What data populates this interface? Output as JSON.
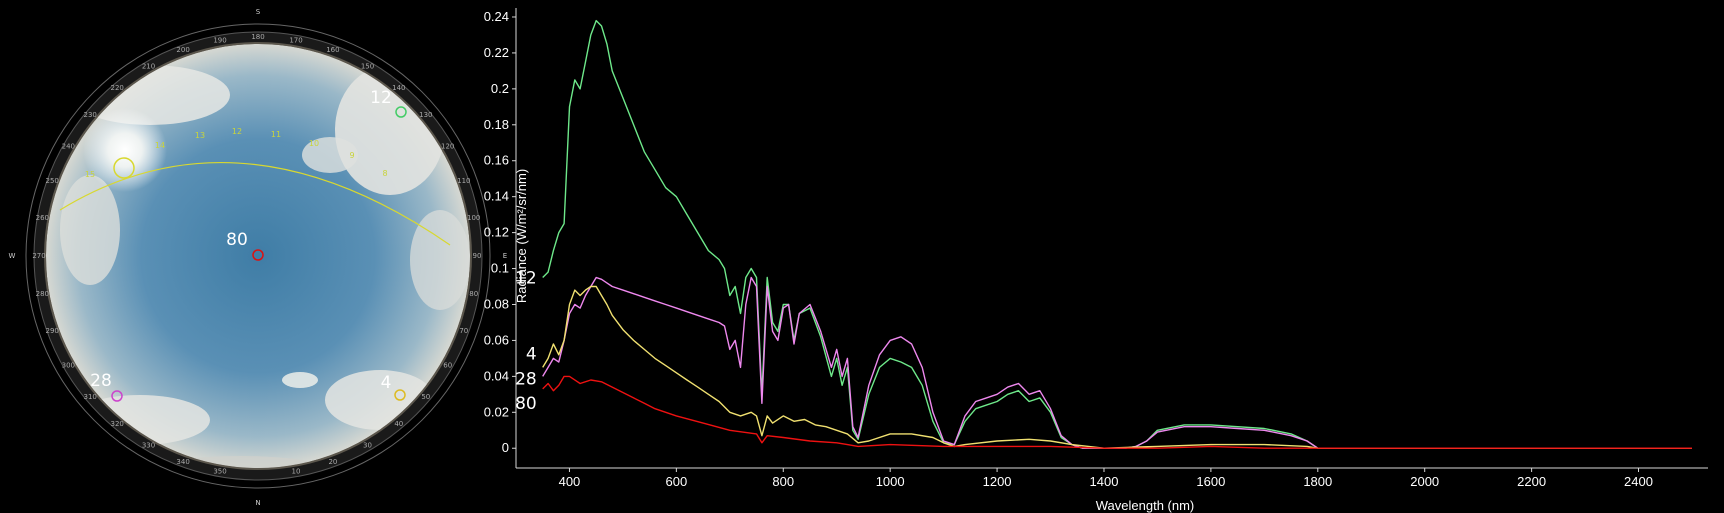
{
  "sky": {
    "compass": {
      "n": "N",
      "s": "S",
      "e": "E",
      "w": "W"
    },
    "azimuth_ticks": [
      "10",
      "20",
      "30",
      "40",
      "50",
      "60",
      "70",
      "80",
      "90",
      "100",
      "110",
      "120",
      "130",
      "140",
      "150",
      "160",
      "170",
      "180",
      "190",
      "200",
      "210",
      "220",
      "230",
      "240",
      "250",
      "260",
      "270",
      "280",
      "290",
      "300",
      "310",
      "320",
      "330",
      "340",
      "350"
    ],
    "sun_path_hours": [
      "15",
      "14",
      "13",
      "12",
      "11",
      "10",
      "9",
      "8"
    ],
    "markers": [
      {
        "label": "12",
        "color": "#44cc66"
      },
      {
        "label": "80",
        "color": "#dd1111"
      },
      {
        "label": "28",
        "color": "#cc44cc"
      },
      {
        "label": "4",
        "color": "#ddbb22"
      }
    ],
    "sun_path_color": "#d8d830"
  },
  "chart_data": {
    "type": "line",
    "xlabel": "Wavelength (nm)",
    "ylabel": "Radiance (W/m²/sr/nm)",
    "xlim": [
      300,
      2530
    ],
    "ylim": [
      -0.011,
      0.245
    ],
    "xticks": [
      400,
      600,
      800,
      1000,
      1200,
      1400,
      1600,
      1800,
      2000,
      2200,
      2400
    ],
    "yticks": [
      0,
      0.02,
      0.04,
      0.06,
      0.08,
      0.1,
      0.12,
      0.14,
      0.16,
      0.18,
      0.2,
      0.22,
      0.24
    ],
    "grid": false,
    "series": [
      {
        "name": "12",
        "color": "#6ee88a",
        "x": [
          350,
          360,
          370,
          380,
          390,
          400,
          410,
          420,
          430,
          440,
          450,
          460,
          470,
          480,
          500,
          520,
          540,
          560,
          580,
          600,
          620,
          640,
          660,
          680,
          690,
          700,
          710,
          720,
          730,
          740,
          750,
          760,
          770,
          780,
          790,
          800,
          810,
          820,
          830,
          850,
          870,
          890,
          900,
          910,
          920,
          930,
          940,
          960,
          980,
          1000,
          1020,
          1040,
          1060,
          1080,
          1100,
          1120,
          1140,
          1160,
          1180,
          1200,
          1220,
          1240,
          1260,
          1280,
          1300,
          1320,
          1340,
          1350,
          1360,
          1400,
          1440,
          1460,
          1480,
          1500,
          1550,
          1600,
          1650,
          1700,
          1750,
          1780,
          1800,
          1850,
          2000,
          2200,
          2400,
          2500
        ],
        "y": [
          0.095,
          0.098,
          0.11,
          0.12,
          0.125,
          0.19,
          0.205,
          0.2,
          0.215,
          0.23,
          0.238,
          0.235,
          0.225,
          0.21,
          0.195,
          0.18,
          0.165,
          0.155,
          0.145,
          0.14,
          0.13,
          0.12,
          0.11,
          0.105,
          0.1,
          0.085,
          0.09,
          0.075,
          0.095,
          0.1,
          0.095,
          0.03,
          0.095,
          0.07,
          0.065,
          0.08,
          0.08,
          0.06,
          0.075,
          0.078,
          0.062,
          0.04,
          0.05,
          0.035,
          0.045,
          0.01,
          0.005,
          0.03,
          0.045,
          0.05,
          0.048,
          0.045,
          0.035,
          0.015,
          0.003,
          0.002,
          0.015,
          0.022,
          0.024,
          0.026,
          0.03,
          0.032,
          0.026,
          0.028,
          0.02,
          0.006,
          0.002,
          0.001,
          0.0,
          0.0,
          0.0,
          0.001,
          0.004,
          0.01,
          0.013,
          0.013,
          0.012,
          0.011,
          0.008,
          0.004,
          0.0,
          0.0,
          0.0,
          0.0,
          0.0,
          0.0
        ]
      },
      {
        "name": "28",
        "color": "#ee88ee",
        "x": [
          350,
          360,
          370,
          380,
          390,
          400,
          410,
          420,
          430,
          440,
          450,
          460,
          470,
          480,
          500,
          520,
          540,
          560,
          580,
          600,
          620,
          640,
          660,
          680,
          690,
          700,
          710,
          720,
          730,
          740,
          750,
          760,
          770,
          780,
          790,
          800,
          810,
          820,
          830,
          850,
          870,
          890,
          900,
          910,
          920,
          930,
          940,
          960,
          980,
          1000,
          1020,
          1040,
          1060,
          1080,
          1100,
          1120,
          1140,
          1160,
          1180,
          1200,
          1220,
          1240,
          1260,
          1280,
          1300,
          1320,
          1340,
          1350,
          1360,
          1400,
          1440,
          1460,
          1480,
          1500,
          1550,
          1600,
          1650,
          1700,
          1750,
          1780,
          1800,
          1850,
          2000,
          2200,
          2400,
          2500
        ],
        "y": [
          0.04,
          0.045,
          0.05,
          0.048,
          0.06,
          0.075,
          0.08,
          0.078,
          0.085,
          0.09,
          0.095,
          0.094,
          0.092,
          0.09,
          0.088,
          0.086,
          0.084,
          0.082,
          0.08,
          0.078,
          0.076,
          0.074,
          0.072,
          0.07,
          0.068,
          0.055,
          0.06,
          0.045,
          0.08,
          0.095,
          0.09,
          0.025,
          0.09,
          0.065,
          0.06,
          0.078,
          0.08,
          0.058,
          0.075,
          0.08,
          0.065,
          0.045,
          0.055,
          0.04,
          0.05,
          0.012,
          0.006,
          0.035,
          0.052,
          0.06,
          0.062,
          0.058,
          0.045,
          0.02,
          0.004,
          0.002,
          0.018,
          0.026,
          0.028,
          0.03,
          0.034,
          0.036,
          0.03,
          0.032,
          0.022,
          0.007,
          0.002,
          0.001,
          0.0,
          0.0,
          0.0,
          0.001,
          0.004,
          0.009,
          0.012,
          0.012,
          0.011,
          0.01,
          0.007,
          0.004,
          0.0,
          0.0,
          0.0,
          0.0,
          0.0,
          0.0
        ]
      },
      {
        "name": "4",
        "color": "#f0e070",
        "x": [
          350,
          360,
          370,
          380,
          390,
          400,
          410,
          420,
          430,
          440,
          450,
          460,
          470,
          480,
          500,
          520,
          540,
          560,
          580,
          600,
          620,
          640,
          660,
          680,
          700,
          720,
          740,
          750,
          760,
          770,
          780,
          800,
          820,
          840,
          860,
          880,
          900,
          920,
          940,
          960,
          1000,
          1040,
          1080,
          1100,
          1120,
          1140,
          1200,
          1260,
          1300,
          1340,
          1400,
          1500,
          1600,
          1700,
          1780,
          1800,
          2000,
          2200,
          2400,
          2500
        ],
        "y": [
          0.045,
          0.05,
          0.058,
          0.052,
          0.06,
          0.08,
          0.088,
          0.085,
          0.088,
          0.09,
          0.09,
          0.085,
          0.08,
          0.074,
          0.066,
          0.06,
          0.055,
          0.05,
          0.046,
          0.042,
          0.038,
          0.034,
          0.03,
          0.026,
          0.02,
          0.018,
          0.02,
          0.018,
          0.007,
          0.018,
          0.014,
          0.018,
          0.015,
          0.016,
          0.013,
          0.012,
          0.01,
          0.008,
          0.003,
          0.004,
          0.008,
          0.008,
          0.006,
          0.003,
          0.001,
          0.002,
          0.004,
          0.005,
          0.004,
          0.002,
          0.0,
          0.001,
          0.002,
          0.002,
          0.001,
          0.0,
          0.0,
          0.0,
          0.0,
          0.0
        ]
      },
      {
        "name": "80",
        "color": "#ee1111",
        "x": [
          350,
          360,
          370,
          380,
          390,
          400,
          420,
          440,
          460,
          480,
          500,
          520,
          540,
          560,
          580,
          600,
          650,
          700,
          750,
          760,
          770,
          800,
          850,
          900,
          920,
          940,
          1000,
          1100,
          1200,
          1300,
          1400,
          1500,
          1600,
          1700,
          1780,
          1800,
          2000,
          2200,
          2400,
          2500
        ],
        "y": [
          0.033,
          0.036,
          0.032,
          0.035,
          0.04,
          0.04,
          0.036,
          0.038,
          0.037,
          0.034,
          0.031,
          0.028,
          0.025,
          0.022,
          0.02,
          0.018,
          0.014,
          0.01,
          0.008,
          0.003,
          0.007,
          0.006,
          0.004,
          0.003,
          0.002,
          0.001,
          0.002,
          0.001,
          0.001,
          0.001,
          0.0,
          0.0,
          0.001,
          0.0,
          0.0,
          0.0,
          0.0,
          0.0,
          0.0,
          0.0
        ]
      }
    ],
    "curve_labels": [
      "12",
      "4",
      "28",
      "80"
    ]
  }
}
